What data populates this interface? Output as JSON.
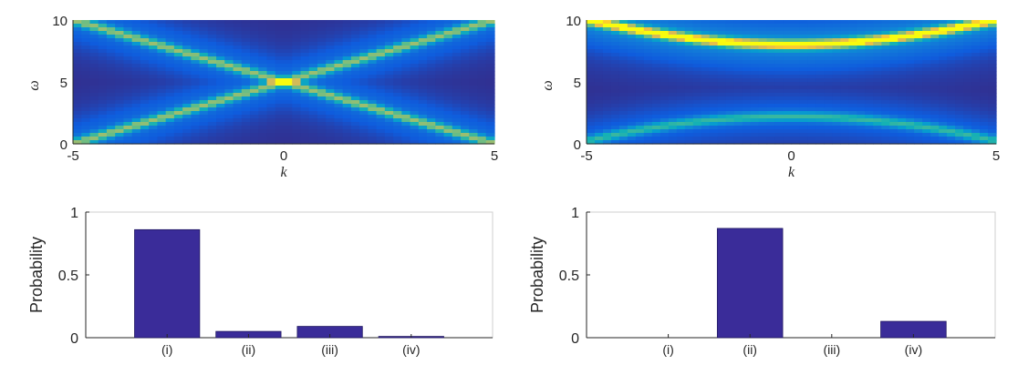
{
  "chart_data": [
    {
      "type": "heatmap",
      "panel": "top-left",
      "xlabel": "k",
      "ylabel": "ω",
      "xlim": [
        -5,
        5
      ],
      "ylim": [
        0,
        10
      ],
      "xticks": [
        "-5",
        "0",
        "5"
      ],
      "yticks": [
        "0",
        "5",
        "10"
      ],
      "colormap": "parula",
      "bands": [
        {
          "shape": "line",
          "omega_at_k0": 5,
          "slope": 1,
          "intensity": 0.55
        },
        {
          "shape": "line",
          "omega_at_k0": 5,
          "slope": -1,
          "intensity": 0.55
        }
      ],
      "peak": {
        "k": 0,
        "omega": 5,
        "intensity": 1.0
      }
    },
    {
      "type": "heatmap",
      "panel": "top-right",
      "xlabel": "k",
      "ylabel": "ω",
      "xlim": [
        -5,
        5
      ],
      "ylim": [
        0,
        10
      ],
      "xticks": [
        "-5",
        "0",
        "5"
      ],
      "yticks": [
        "0",
        "5",
        "10"
      ],
      "colormap": "parula",
      "bands": [
        {
          "shape": "hyperbola",
          "omega_at_k0": 8,
          "omega_at_k5": 10,
          "intensity": 0.85
        },
        {
          "shape": "parabola",
          "omega_at_k0": 2.2,
          "omega_at_k5": 0.2,
          "intensity": 0.42
        }
      ]
    },
    {
      "type": "bar",
      "panel": "bottom-left",
      "categories": [
        "(i)",
        "(ii)",
        "(iii)",
        "(iv)"
      ],
      "values": [
        0.86,
        0.05,
        0.09,
        0.01
      ],
      "ylabel": "Probability",
      "ylim": [
        0,
        1
      ],
      "yticks": [
        "0",
        "0.5",
        "1"
      ],
      "bar_color": "#3a2c99"
    },
    {
      "type": "bar",
      "panel": "bottom-right",
      "categories": [
        "(i)",
        "(ii)",
        "(iii)",
        "(iv)"
      ],
      "values": [
        0,
        0.87,
        0,
        0.13
      ],
      "ylabel": "Probability",
      "ylim": [
        0,
        1
      ],
      "yticks": [
        "0",
        "0.5",
        "1"
      ],
      "bar_color": "#3a2c99"
    }
  ],
  "colors": {
    "axis": "#262626",
    "background": "#ffffff",
    "heat_low": "#352a87",
    "heat_high": "#f9fb0e"
  }
}
